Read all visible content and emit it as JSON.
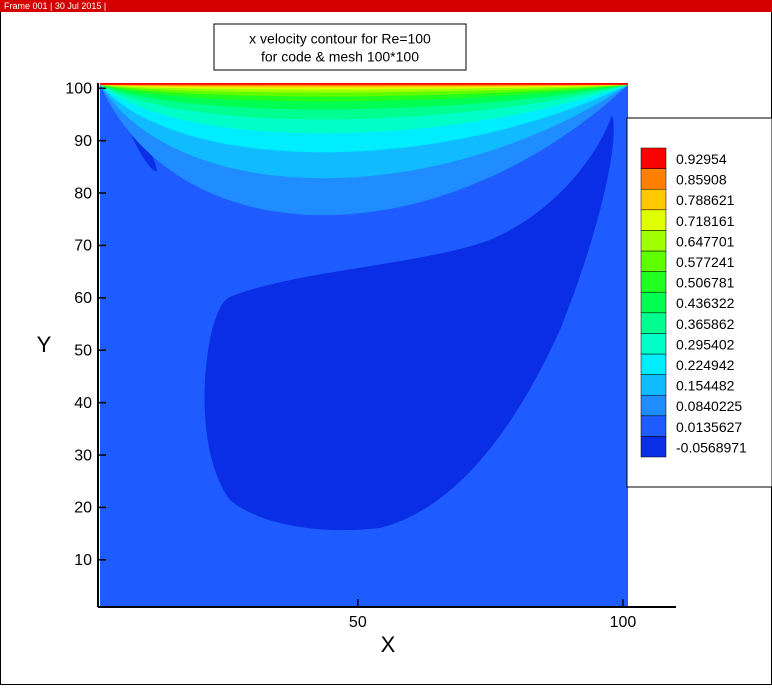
{
  "header": "Frame 001 | 30 Jul 2015 |",
  "chart_data": {
    "type": "contour",
    "title": [
      "x velocity contour for Re=100",
      "for code & mesh 100*100"
    ],
    "x_label": "X",
    "y_label": "Y",
    "xlim": [
      1,
      110
    ],
    "ylim": [
      1,
      101
    ],
    "xticks": [
      50,
      100
    ],
    "yticks": [
      10,
      20,
      30,
      40,
      50,
      60,
      70,
      80,
      90,
      100
    ],
    "levels": [
      -0.0568971,
      0.0135627,
      0.0840225,
      0.154482,
      0.224942,
      0.295402,
      0.365862,
      0.436322,
      0.506781,
      0.577241,
      0.647701,
      0.718161,
      0.788621,
      0.85908,
      0.92954
    ],
    "colors": [
      "#0a2ee6",
      "#1f5cff",
      "#1f8cff",
      "#10bcff",
      "#00ecff",
      "#00ffc8",
      "#00ff90",
      "#00ff50",
      "#20ff20",
      "#60ff00",
      "#a0ff00",
      "#e0ff00",
      "#ffc800",
      "#ff8000",
      "#ff4000"
    ],
    "top_color": "#ff0000"
  }
}
